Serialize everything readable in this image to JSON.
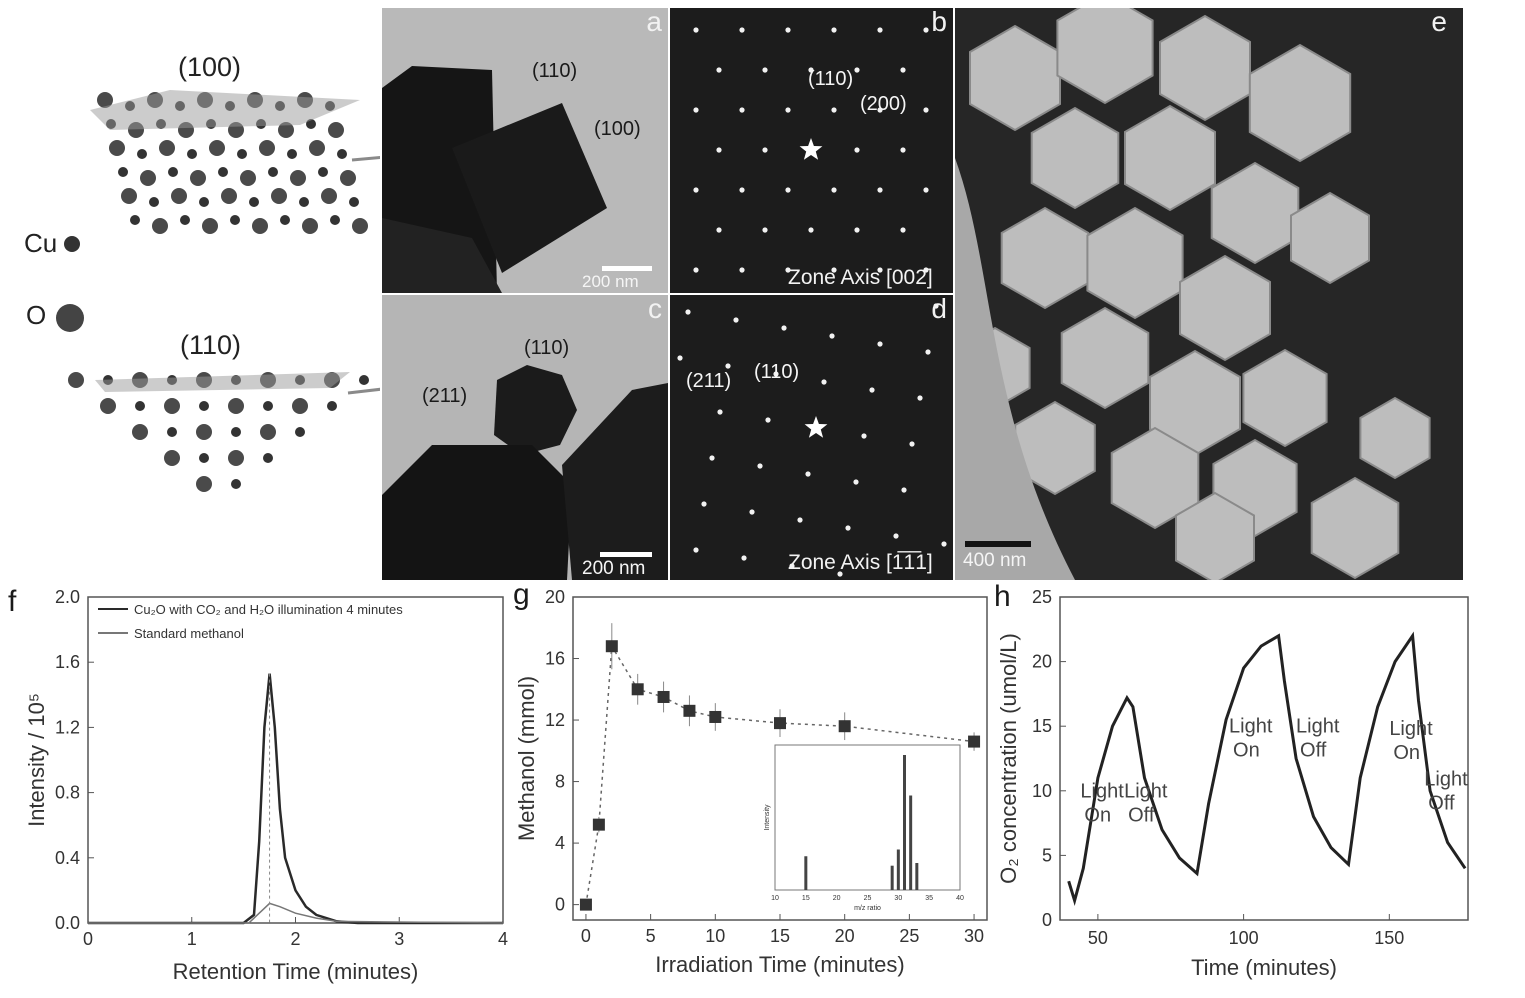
{
  "structures": {
    "top_label": "(100)",
    "bottom_label": "(110)",
    "legend_cu": "Cu",
    "legend_o": "O"
  },
  "micrographs": {
    "a": {
      "letter": "a",
      "label1": "(110)",
      "label2": "(100)",
      "scale": "200 nm"
    },
    "b": {
      "letter": "b",
      "label1": "(110)",
      "label2": "(200)",
      "zone": "Zone Axis [002]"
    },
    "c": {
      "letter": "c",
      "label1": "(110)",
      "label2": "(211)",
      "scale": "200 nm"
    },
    "d": {
      "letter": "d",
      "label1": "(211)",
      "label2": "(110)",
      "zone": "Zone Axis [1̅1̅1]"
    },
    "e": {
      "letter": "e",
      "scale": "400 nm"
    }
  },
  "chart_data": [
    {
      "panel": "f",
      "type": "line",
      "xlabel": "Retention Time (minutes)",
      "ylabel": "Intensity / 10⁵",
      "xlim": [
        0,
        4
      ],
      "ylim": [
        0,
        2.0
      ],
      "xticks": [
        "0",
        "1",
        "2",
        "3",
        "4"
      ],
      "yticks": [
        "0.0",
        "0.4",
        "0.8",
        "1.2",
        "1.6",
        "2.0"
      ],
      "legend": [
        "Cu₂O with CO₂ and H₂O illumination 4 minutes",
        "Standard methanol"
      ],
      "series": [
        {
          "name": "Cu₂O with CO₂ and H₂O illumination 4 minutes",
          "x": [
            0,
            1.5,
            1.6,
            1.65,
            1.7,
            1.75,
            1.8,
            1.85,
            1.9,
            2.0,
            2.1,
            2.2,
            2.4,
            2.6,
            4
          ],
          "y": [
            0,
            0,
            0.05,
            0.5,
            1.2,
            1.53,
            1.2,
            0.7,
            0.4,
            0.2,
            0.1,
            0.05,
            0.01,
            0,
            0
          ]
        },
        {
          "name": "Standard methanol",
          "x": [
            0,
            1.55,
            1.65,
            1.75,
            1.85,
            2.0,
            2.2,
            2.4,
            4
          ],
          "y": [
            0,
            0,
            0.06,
            0.12,
            0.1,
            0.06,
            0.03,
            0.01,
            0
          ]
        }
      ]
    },
    {
      "panel": "g",
      "type": "scatter",
      "xlabel": "Irradiation Time (minutes)",
      "ylabel": "Methanol (mmol)",
      "xlim": [
        -1,
        31
      ],
      "ylim": [
        -1,
        20
      ],
      "xticks": [
        "0",
        "5",
        "10",
        "15",
        "20",
        "25",
        "30"
      ],
      "yticks": [
        "0",
        "4",
        "8",
        "12",
        "16",
        "20"
      ],
      "series": [
        {
          "x": [
            0,
            1,
            2,
            4,
            6,
            8,
            10,
            15,
            20,
            30
          ],
          "y": [
            0,
            5.2,
            16.8,
            14.0,
            13.5,
            12.6,
            12.2,
            11.8,
            11.6,
            10.6
          ],
          "err": [
            0.3,
            0.5,
            1.5,
            1.0,
            1.0,
            1.0,
            0.9,
            0.9,
            0.9,
            0.6
          ]
        }
      ],
      "inset": {
        "xlabel": "m/z ratio",
        "ylabel": "Intensity",
        "xticks": [
          "10",
          "15",
          "20",
          "25",
          "30",
          "35",
          "40"
        ],
        "bars": [
          {
            "x": 15,
            "y": 0.25
          },
          {
            "x": 29,
            "y": 0.18
          },
          {
            "x": 30,
            "y": 0.3
          },
          {
            "x": 31,
            "y": 1.0
          },
          {
            "x": 32,
            "y": 0.7
          },
          {
            "x": 33,
            "y": 0.2
          }
        ]
      }
    },
    {
      "panel": "h",
      "type": "line",
      "xlabel": "Time (minutes)",
      "ylabel": "O₂ concentration (umol/L)",
      "xlim": [
        37,
        177
      ],
      "ylim": [
        0,
        25
      ],
      "xticks": [
        "50",
        "100",
        "150"
      ],
      "yticks": [
        "0",
        "5",
        "10",
        "15",
        "20",
        "25"
      ],
      "annotations": [
        "Light On",
        "Light Off",
        "Light On",
        "Light Off",
        "Light On",
        "Light Off"
      ],
      "series": [
        {
          "x": [
            40,
            42,
            45,
            50,
            55,
            60,
            62,
            66,
            72,
            78,
            84,
            88,
            94,
            100,
            106,
            112,
            114,
            118,
            124,
            130,
            136,
            140,
            146,
            152,
            158,
            160,
            164,
            170,
            176
          ],
          "y": [
            3,
            1.5,
            4,
            11,
            15,
            17.2,
            16.5,
            11,
            7,
            4.8,
            3.6,
            9,
            15.5,
            19.5,
            21.2,
            22,
            18.5,
            12.5,
            8,
            5.6,
            4.3,
            11,
            16.5,
            20,
            22,
            17,
            10,
            6,
            4
          ]
        }
      ]
    }
  ]
}
